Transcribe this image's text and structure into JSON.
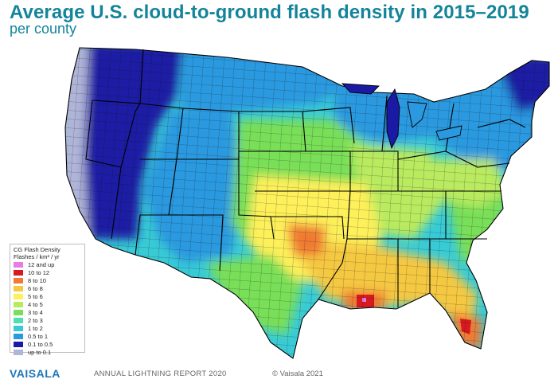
{
  "header": {
    "title": "Average U.S. cloud-to-ground flash density in 2015–2019",
    "subtitle": "per county"
  },
  "legend": {
    "title": "CG Flash Density",
    "units": "Flashes / km² / yr",
    "items": [
      {
        "label": "12 and up",
        "color": "#e97ce3"
      },
      {
        "label": "10 to 12",
        "color": "#d71920"
      },
      {
        "label": "8 to 10",
        "color": "#f07a33"
      },
      {
        "label": "6 to 8",
        "color": "#f5c842"
      },
      {
        "label": "5 to 6",
        "color": "#fdf05a"
      },
      {
        "label": "4 to 5",
        "color": "#b9ea5e"
      },
      {
        "label": "3 to 4",
        "color": "#79df59"
      },
      {
        "label": "2 to 3",
        "color": "#4ee0b0"
      },
      {
        "label": "1 to 2",
        "color": "#38cbd6"
      },
      {
        "label": "0.5 to 1",
        "color": "#2a99df"
      },
      {
        "label": "0.1 to 0.5",
        "color": "#1a1aa4"
      },
      {
        "label": "up to 0.1",
        "color": "#b0b5d8"
      }
    ]
  },
  "footer": {
    "brand": "VAISALA",
    "report": "ANNUAL LIGHTNING REPORT 2020",
    "copyright": "© Vaisala 2021"
  }
}
